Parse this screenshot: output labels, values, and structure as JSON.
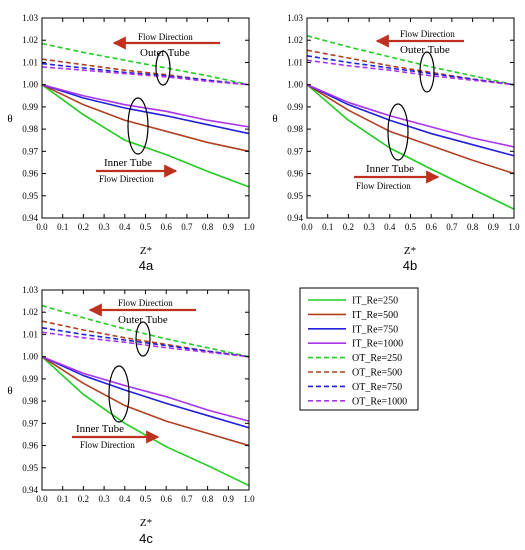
{
  "chart_data": [
    {
      "type": "line",
      "panel_label": "4a",
      "xlabel": "Z*",
      "ylabel": "θ",
      "xlim": [
        0.0,
        1.0
      ],
      "ylim": [
        0.94,
        1.03
      ],
      "x_ticks": [
        "0.0",
        "0.1",
        "0.2",
        "0.3",
        "0.4",
        "0.5",
        "0.6",
        "0.7",
        "0.8",
        "0.9",
        "1.0"
      ],
      "y_ticks": [
        "0.94",
        "0.95",
        "0.96",
        "0.97",
        "0.98",
        "0.99",
        "1.00",
        "1.01",
        "1.02",
        "1.03"
      ],
      "annotations": {
        "outer_flow": "Flow Direction",
        "outer_tube": "Outer Tube",
        "inner_tube": "Inner Tube",
        "inner_flow": "Flow Direction"
      },
      "series": [
        {
          "name": "IT_Re=250",
          "x": [
            0,
            0.2,
            0.4,
            0.6,
            0.8,
            1.0
          ],
          "y": [
            1.0,
            0.9865,
            0.975,
            0.9685,
            0.961,
            0.954
          ]
        },
        {
          "name": "IT_Re=500",
          "x": [
            0,
            0.2,
            0.4,
            0.6,
            0.8,
            1.0
          ],
          "y": [
            1.0,
            0.991,
            0.984,
            0.979,
            0.974,
            0.97
          ]
        },
        {
          "name": "IT_Re=750",
          "x": [
            0,
            0.2,
            0.4,
            0.6,
            0.8,
            1.0
          ],
          "y": [
            1.0,
            0.994,
            0.9895,
            0.986,
            0.982,
            0.978
          ]
        },
        {
          "name": "IT_Re=1000",
          "x": [
            0,
            0.2,
            0.4,
            0.6,
            0.8,
            1.0
          ],
          "y": [
            1.0,
            0.995,
            0.991,
            0.988,
            0.984,
            0.981
          ]
        },
        {
          "name": "OT_Re=250",
          "x": [
            0,
            0.2,
            0.4,
            0.6,
            0.8,
            1.0
          ],
          "y": [
            1.0185,
            1.0145,
            1.011,
            1.0075,
            1.004,
            1.0
          ]
        },
        {
          "name": "OT_Re=500",
          "x": [
            0,
            0.2,
            0.4,
            0.6,
            0.8,
            1.0
          ],
          "y": [
            1.0115,
            1.009,
            1.0065,
            1.0045,
            1.002,
            1.0
          ]
        },
        {
          "name": "OT_Re=750",
          "x": [
            0,
            0.2,
            0.4,
            0.6,
            0.8,
            1.0
          ],
          "y": [
            1.0095,
            1.0075,
            1.0055,
            1.004,
            1.002,
            1.0
          ]
        },
        {
          "name": "OT_Re=1000",
          "x": [
            0,
            0.2,
            0.4,
            0.6,
            0.8,
            1.0
          ],
          "y": [
            1.008,
            1.0065,
            1.005,
            1.0035,
            1.0015,
            1.0
          ]
        }
      ]
    },
    {
      "type": "line",
      "panel_label": "4b",
      "xlabel": "Z*",
      "ylabel": "θ",
      "xlim": [
        0.0,
        1.0
      ],
      "ylim": [
        0.94,
        1.03
      ],
      "x_ticks": [
        "0.0",
        "0.1",
        "0.2",
        "0.3",
        "0.4",
        "0.5",
        "0.6",
        "0.7",
        "0.8",
        "0.9",
        "1.0"
      ],
      "y_ticks": [
        "0.94",
        "0.95",
        "0.96",
        "0.97",
        "0.98",
        "0.99",
        "1.00",
        "1.01",
        "1.02",
        "1.03"
      ],
      "annotations": {
        "outer_flow": "Flow Direction",
        "outer_tube": "Outer Tube",
        "inner_tube": "Inner Tube",
        "inner_flow": "Flow Direction"
      },
      "series": [
        {
          "name": "IT_Re=250",
          "x": [
            0,
            0.2,
            0.4,
            0.6,
            0.8,
            1.0
          ],
          "y": [
            1.0,
            0.984,
            0.9715,
            0.962,
            0.953,
            0.944
          ]
        },
        {
          "name": "IT_Re=500",
          "x": [
            0,
            0.2,
            0.4,
            0.6,
            0.8,
            1.0
          ],
          "y": [
            1.0,
            0.9885,
            0.979,
            0.9725,
            0.966,
            0.96
          ]
        },
        {
          "name": "IT_Re=750",
          "x": [
            0,
            0.2,
            0.4,
            0.6,
            0.8,
            1.0
          ],
          "y": [
            1.0,
            0.991,
            0.984,
            0.978,
            0.973,
            0.968
          ]
        },
        {
          "name": "IT_Re=1000",
          "x": [
            0,
            0.2,
            0.4,
            0.6,
            0.8,
            1.0
          ],
          "y": [
            1.0,
            0.992,
            0.986,
            0.981,
            0.976,
            0.972
          ]
        },
        {
          "name": "OT_Re=250",
          "x": [
            0,
            0.2,
            0.4,
            0.6,
            0.8,
            1.0
          ],
          "y": [
            1.022,
            1.017,
            1.0125,
            1.008,
            1.004,
            1.0
          ]
        },
        {
          "name": "OT_Re=500",
          "x": [
            0,
            0.2,
            0.4,
            0.6,
            0.8,
            1.0
          ],
          "y": [
            1.0155,
            1.012,
            1.0085,
            1.0055,
            1.0025,
            1.0
          ]
        },
        {
          "name": "OT_Re=750",
          "x": [
            0,
            0.2,
            0.4,
            0.6,
            0.8,
            1.0
          ],
          "y": [
            1.013,
            1.01,
            1.0075,
            1.005,
            1.0025,
            1.0
          ]
        },
        {
          "name": "OT_Re=1000",
          "x": [
            0,
            0.2,
            0.4,
            0.6,
            0.8,
            1.0
          ],
          "y": [
            1.011,
            1.0085,
            1.0065,
            1.004,
            1.002,
            1.0
          ]
        }
      ]
    },
    {
      "type": "line",
      "panel_label": "4c",
      "xlabel": "Z*",
      "ylabel": "θ",
      "xlim": [
        0.0,
        1.0
      ],
      "ylim": [
        0.94,
        1.03
      ],
      "x_ticks": [
        "0.0",
        "0.1",
        "0.2",
        "0.3",
        "0.4",
        "0.5",
        "0.6",
        "0.7",
        "0.8",
        "0.9",
        "1.0"
      ],
      "y_ticks": [
        "0.94",
        "0.95",
        "0.96",
        "0.97",
        "0.98",
        "0.99",
        "1.00",
        "1.01",
        "1.02",
        "1.03"
      ],
      "annotations": {
        "outer_flow": "Flow Direction",
        "outer_tube": "Outer Tube",
        "inner_tube": "Inner Tube",
        "inner_flow": "Flow Direction"
      },
      "series": [
        {
          "name": "IT_Re=250",
          "x": [
            0,
            0.2,
            0.4,
            0.6,
            0.8,
            1.0
          ],
          "y": [
            1.0,
            0.983,
            0.97,
            0.9595,
            0.951,
            0.942
          ]
        },
        {
          "name": "IT_Re=500",
          "x": [
            0,
            0.2,
            0.4,
            0.6,
            0.8,
            1.0
          ],
          "y": [
            1.0,
            0.988,
            0.978,
            0.971,
            0.9655,
            0.96
          ]
        },
        {
          "name": "IT_Re=750",
          "x": [
            0,
            0.2,
            0.4,
            0.6,
            0.8,
            1.0
          ],
          "y": [
            1.0,
            0.9915,
            0.985,
            0.979,
            0.9735,
            0.968
          ]
        },
        {
          "name": "IT_Re=1000",
          "x": [
            0,
            0.2,
            0.4,
            0.6,
            0.8,
            1.0
          ],
          "y": [
            1.0,
            0.9925,
            0.987,
            0.982,
            0.976,
            0.971
          ]
        },
        {
          "name": "OT_Re=250",
          "x": [
            0,
            0.2,
            0.4,
            0.6,
            0.8,
            1.0
          ],
          "y": [
            1.023,
            1.0175,
            1.0125,
            1.008,
            1.004,
            1.0
          ]
        },
        {
          "name": "OT_Re=500",
          "x": [
            0,
            0.2,
            0.4,
            0.6,
            0.8,
            1.0
          ],
          "y": [
            1.016,
            1.012,
            1.0085,
            1.0055,
            1.0025,
            1.0
          ]
        },
        {
          "name": "OT_Re=750",
          "x": [
            0,
            0.2,
            0.4,
            0.6,
            0.8,
            1.0
          ],
          "y": [
            1.013,
            1.01,
            1.0075,
            1.005,
            1.0025,
            1.0
          ]
        },
        {
          "name": "OT_Re=1000",
          "x": [
            0,
            0.2,
            0.4,
            0.6,
            0.8,
            1.0
          ],
          "y": [
            1.011,
            1.0085,
            1.0065,
            1.004,
            1.002,
            1.0
          ]
        }
      ]
    }
  ],
  "legend": [
    {
      "label": "IT_Re=250",
      "color": "#22cc22",
      "dash": "solid"
    },
    {
      "label": "IT_Re=500",
      "color": "#b04020",
      "dash": "solid"
    },
    {
      "label": "IT_Re=750",
      "color": "#2020dd",
      "dash": "solid"
    },
    {
      "label": "IT_Re=1000",
      "color": "#aa33ee",
      "dash": "solid"
    },
    {
      "label": "OT_Re=250",
      "color": "#22cc22",
      "dash": "dashed"
    },
    {
      "label": "OT_Re=500",
      "color": "#b04020",
      "dash": "dashed"
    },
    {
      "label": "OT_Re=750",
      "color": "#2020dd",
      "dash": "dashed"
    },
    {
      "label": "OT_Re=1000",
      "color": "#aa33ee",
      "dash": "dashed"
    }
  ],
  "colors": {
    "arrow": "#c03020",
    "ellipse": "#000000",
    "axis": "#000000"
  }
}
